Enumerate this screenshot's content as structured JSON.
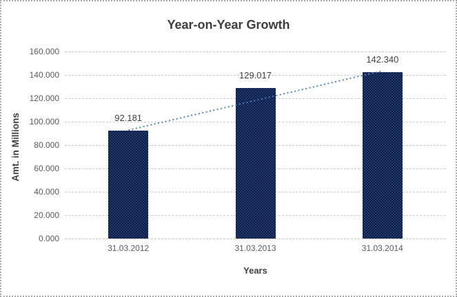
{
  "chart_data": {
    "type": "bar",
    "title": "Year-on-Year Growth",
    "xlabel": "Years",
    "ylabel": "Amt. in Millions",
    "categories": [
      "31.03.2012",
      "31.03.2013",
      "31.03.2014"
    ],
    "values": [
      92.181,
      129.017,
      142.34
    ],
    "data_labels": [
      "92.181",
      "129.017",
      "142.340"
    ],
    "ylim": [
      0,
      160
    ],
    "ytick_step": 20,
    "yticks": [
      {
        "value": 160,
        "label": "160.000"
      },
      {
        "value": 140,
        "label": "140.000"
      },
      {
        "value": 120,
        "label": "120.000"
      },
      {
        "value": 100,
        "label": "100.000"
      },
      {
        "value": 80,
        "label": "80.000"
      },
      {
        "value": 60,
        "label": "60.000"
      },
      {
        "value": 40,
        "label": "40.000"
      },
      {
        "value": 20,
        "label": "20.000"
      },
      {
        "value": 0,
        "label": "0.000"
      }
    ],
    "grid": true,
    "legend": false,
    "trendline": {
      "type": "linear",
      "style": "dotted",
      "color": "#4c84c4",
      "from_point": 0,
      "to_point": 2
    },
    "colors": {
      "bar": "#152c5a",
      "grid": "#c9c9c9",
      "title_text": "#3d3d3d",
      "tick_text": "#595959",
      "label_text": "#404040",
      "trend": "#4c84c4",
      "frame_border": "#a9a9a9",
      "background": "#ffffff"
    }
  }
}
